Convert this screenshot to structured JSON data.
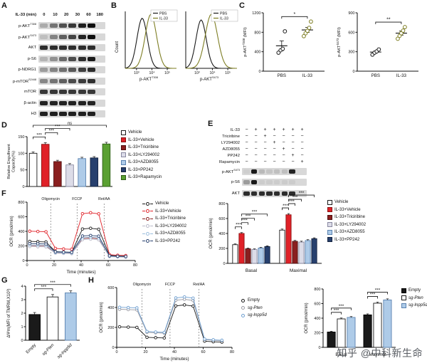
{
  "watermark": "知乎 @中科新生命",
  "panelA": {
    "letter": "A",
    "header_label": "IL-33 (min)",
    "lanes": [
      "0",
      "10",
      "20",
      "30",
      "60",
      "180"
    ],
    "rows": [
      {
        "base": "p-AKT",
        "sup": "T308",
        "bands": [
          0.22,
          0.5,
          0.68,
          0.8,
          0.92,
          1
        ]
      },
      {
        "base": "p-AKT",
        "sup": "S473",
        "bands": [
          0.12,
          0.42,
          0.6,
          0.74,
          0.9,
          1
        ]
      },
      {
        "base": "AKT",
        "bands": [
          0.85,
          0.85,
          0.85,
          0.85,
          0.85,
          0.85
        ]
      },
      {
        "base": "p-S6",
        "bands": [
          0.18,
          0.35,
          0.55,
          0.7,
          0.85,
          0.95
        ]
      },
      {
        "base": "p-NDRG1",
        "bands": [
          0.3,
          0.42,
          0.52,
          0.64,
          0.76,
          0.86
        ]
      },
      {
        "base": "p-mTOR",
        "sup": "S2448",
        "bands": [
          0.4,
          0.5,
          0.6,
          0.7,
          0.78,
          0.84
        ]
      },
      {
        "base": "mTOR",
        "bands": [
          0.8,
          0.8,
          0.8,
          0.8,
          0.8,
          0.8
        ]
      },
      {
        "base": "β-actin",
        "bands": [
          0.9,
          0.9,
          0.9,
          0.9,
          0.9,
          0.9
        ]
      },
      {
        "base": "H3",
        "bands": [
          0.92,
          0.92,
          0.92,
          0.92,
          0.92,
          0.92
        ]
      }
    ]
  },
  "panelB": {
    "letter": "B",
    "ylabel": "Count"
  },
  "panelC": {
    "letter": "C"
  },
  "panelD": {
    "letter": "D"
  },
  "panelE": {
    "letter": "E",
    "conditions": [
      {
        "label": "IL-33",
        "signs": [
          "−",
          "+",
          "+",
          "+",
          "+",
          "+",
          "+"
        ]
      },
      {
        "label": "Triciribine",
        "signs": [
          "−",
          "−",
          "+",
          "−",
          "−",
          "−",
          "−"
        ]
      },
      {
        "label": "LY294002",
        "signs": [
          "−",
          "−",
          "−",
          "+",
          "−",
          "−",
          "−"
        ]
      },
      {
        "label": "AZD8055",
        "signs": [
          "−",
          "−",
          "−",
          "−",
          "+",
          "−",
          "−"
        ]
      },
      {
        "label": "PP242",
        "signs": [
          "−",
          "−",
          "−",
          "−",
          "−",
          "+",
          "−"
        ]
      },
      {
        "label": "Rapamycin",
        "signs": [
          "−",
          "−",
          "−",
          "−",
          "−",
          "−",
          "+"
        ]
      }
    ],
    "blots": [
      {
        "base": "p-AKT",
        "sup": "S473",
        "bands": [
          0.05,
          0.95,
          0.15,
          0.1,
          0.12,
          0.12,
          0.9
        ]
      },
      {
        "base": "p-S6",
        "bands": [
          0.3,
          0.95,
          0.06,
          0.06,
          0.06,
          0.06,
          0.06
        ]
      },
      {
        "base": "AKT",
        "bands": [
          0.85,
          0.85,
          0.85,
          0.85,
          0.85,
          0.85,
          0.85
        ]
      }
    ]
  },
  "panelF": {
    "letter": "F"
  },
  "panelG": {
    "letter": "G"
  },
  "panelH": {
    "letter": "H"
  },
  "chart_data": [
    {
      "id": "B1",
      "panel": "B",
      "type": "histogram",
      "xlabel_pre": "p-AKT",
      "xlabel_sup": "T308",
      "ylabel": "Count",
      "xtick_labels": [
        "10³",
        "10⁴",
        "10⁵"
      ],
      "series": [
        {
          "name": "PBS",
          "color": "#1a1a1a",
          "center": 0.33,
          "width": 0.1,
          "height": 0.88
        },
        {
          "name": "IL-33",
          "color": "#7d7d22",
          "center": 0.5,
          "width": 0.11,
          "height": 0.95
        }
      ]
    },
    {
      "id": "B2",
      "panel": "B",
      "type": "histogram",
      "xlabel_pre": "p-AKT",
      "xlabel_sup": "S473",
      "ylabel": "Count",
      "xtick_labels": [
        "10³",
        "10⁴",
        "10⁵"
      ],
      "series": [
        {
          "name": "PBS",
          "color": "#1a1a1a",
          "center": 0.3,
          "width": 0.1,
          "height": 0.85
        },
        {
          "name": "IL-33",
          "color": "#7d7d22",
          "center": 0.5,
          "width": 0.12,
          "height": 0.95
        }
      ]
    },
    {
      "id": "C1",
      "panel": "C",
      "type": "scatter",
      "ylabel_pre": "p-AKT",
      "ylabel_sup": "T308",
      "ylabel_post": " (MFI)",
      "ylim": [
        0,
        1200
      ],
      "yticks": [
        0,
        400,
        800,
        1200
      ],
      "sig": "*",
      "groups": [
        {
          "name": "PBS",
          "color": "#1a1a1a",
          "points": [
            380,
            430,
            460,
            820
          ]
        },
        {
          "name": "IL-33",
          "color": "#7d7d22",
          "points": [
            720,
            780,
            830,
            890,
            1020
          ]
        }
      ]
    },
    {
      "id": "C2",
      "panel": "C",
      "type": "scatter",
      "ylabel_pre": "p-AKT",
      "ylabel_sup": "S473",
      "ylabel_post": " (MFI)",
      "ylim": [
        0,
        900
      ],
      "yticks": [
        0,
        300,
        600,
        900
      ],
      "sig": "**",
      "groups": [
        {
          "name": "PBS",
          "color": "#1a1a1a",
          "points": [
            255,
            285,
            305,
            335
          ]
        },
        {
          "name": "IL-33",
          "color": "#7d7d22",
          "points": [
            500,
            545,
            585,
            625,
            680
          ]
        }
      ]
    },
    {
      "id": "D",
      "panel": "D",
      "type": "bar",
      "ylabel_lines": [
        "Relative Engulfment",
        "Capacity(%)"
      ],
      "ylim": [
        0,
        150
      ],
      "yticks": [
        0,
        50,
        100,
        150
      ],
      "bars": [
        {
          "label": "Vehicle",
          "color": "#ffffff",
          "border": "#1a1a1a",
          "value": 100,
          "error": 4
        },
        {
          "label": "IL-33+Vehicle",
          "color": "#e02128",
          "border": "#8a1212",
          "value": 127,
          "error": 5
        },
        {
          "label": "IL-33+Triciribine",
          "color": "#8a1f1f",
          "border": "#4f0f0f",
          "value": 75,
          "error": 4
        },
        {
          "label": "IL-33+LY294002",
          "color": "#dcdce8",
          "border": "#8888a0",
          "value": 65,
          "error": 4
        },
        {
          "label": "IL-33+AZD8055",
          "color": "#aecbe8",
          "border": "#5a82b0",
          "value": 84,
          "error": 4
        },
        {
          "label": "IL-33+PP242",
          "color": "#27406e",
          "border": "#14233f",
          "value": 86,
          "error": 4
        },
        {
          "label": "IL-33+Rapamycin",
          "color": "#5aa032",
          "border": "#2f5c16",
          "value": 128,
          "error": 5
        }
      ],
      "sig": [
        {
          "i": 0,
          "j": 1,
          "label": "***"
        },
        {
          "i": 1,
          "j": 2,
          "label": "***"
        },
        {
          "i": 1,
          "j": 3,
          "label": "***"
        },
        {
          "i": 0,
          "j": 6,
          "label": "ns"
        }
      ]
    },
    {
      "id": "F_line",
      "panel": "F",
      "type": "line",
      "ylabel": "OCR (pmol/min)",
      "xlabel": "Time (minutes)",
      "ylim": [
        0,
        800
      ],
      "yticks": [
        0,
        200,
        400,
        600,
        800
      ],
      "xlim": [
        0,
        80
      ],
      "xticks": [
        0,
        20,
        40,
        60,
        80
      ],
      "point_error": 12,
      "injections": [
        {
          "x": 17.5,
          "label": "Oligomycin"
        },
        {
          "x": 37,
          "label": "FCCP"
        },
        {
          "x": 57,
          "label": "Ret/AA"
        }
      ],
      "x": [
        2,
        8,
        14,
        21,
        27,
        33,
        41,
        47,
        53,
        61,
        67,
        73
      ],
      "series": [
        {
          "name": "Vehicle",
          "color": "#1a1a1a",
          "values": [
            262,
            258,
            255,
            122,
            116,
            112,
            432,
            442,
            428,
            70,
            62,
            58
          ]
        },
        {
          "name": "IL-33+Vehicle",
          "color": "#e02128",
          "values": [
            402,
            398,
            394,
            166,
            158,
            154,
            642,
            655,
            640,
            80,
            72,
            68
          ]
        },
        {
          "name": "IL-33+Triciribine",
          "color": "#8a1f1f",
          "values": [
            206,
            203,
            200,
            108,
            104,
            101,
            302,
            309,
            300,
            58,
            52,
            49
          ]
        },
        {
          "name": "IL-33+LY294002",
          "color": "#b8b8c8",
          "values": [
            192,
            189,
            186,
            101,
            97,
            94,
            286,
            293,
            284,
            52,
            48,
            45
          ]
        },
        {
          "name": "IL-33+AZD8055",
          "color": "#9bbede",
          "values": [
            212,
            209,
            206,
            111,
            107,
            104,
            312,
            319,
            310,
            60,
            55,
            52
          ]
        },
        {
          "name": "IL-33+PP242",
          "color": "#27406e",
          "values": [
            232,
            229,
            226,
            119,
            115,
            112,
            336,
            343,
            334,
            64,
            58,
            55
          ]
        }
      ]
    },
    {
      "id": "F_bar",
      "panel": "F",
      "type": "bar",
      "ylabel": "OCR (pmol/min)",
      "ylim": [
        0,
        800
      ],
      "yticks": [
        0,
        200,
        400,
        600,
        800
      ],
      "groups": [
        "Basal",
        "Maximal"
      ],
      "series": [
        {
          "name": "Vehicle",
          "color": "#ffffff",
          "border": "#1a1a1a",
          "values": [
            250,
            445
          ],
          "errors": [
            10,
            14
          ]
        },
        {
          "name": "IL-33+Vehicle",
          "color": "#e02128",
          "border": "#8a1212",
          "values": [
            400,
            650
          ],
          "errors": [
            12,
            16
          ]
        },
        {
          "name": "IL-33+Triciribine",
          "color": "#8a1f1f",
          "border": "#4f0f0f",
          "values": [
            195,
            295
          ],
          "errors": [
            9,
            12
          ]
        },
        {
          "name": "IL-33+LY294002",
          "color": "#dcdce8",
          "border": "#8888a0",
          "values": [
            185,
            285
          ],
          "errors": [
            9,
            12
          ]
        },
        {
          "name": "IL-33+AZD8055",
          "color": "#aecbe8",
          "border": "#5a82b0",
          "values": [
            205,
            305
          ],
          "errors": [
            9,
            12
          ]
        },
        {
          "name": "IL-33+PP242",
          "color": "#27406e",
          "border": "#14233f",
          "values": [
            225,
            330
          ],
          "errors": [
            10,
            12
          ]
        }
      ],
      "sig": [
        [
          {
            "i": 0,
            "j": 1,
            "label": "***"
          },
          {
            "i": 1,
            "j": 2,
            "label": "***"
          },
          {
            "i": 1,
            "j": 3,
            "label": "***"
          },
          {
            "i": 1,
            "j": 5,
            "label": "***"
          }
        ],
        [
          {
            "i": 0,
            "j": 1,
            "label": "***"
          },
          {
            "i": 1,
            "j": 2,
            "label": "***"
          },
          {
            "i": 1,
            "j": 3,
            "label": "***"
          },
          {
            "i": 1,
            "j": 5,
            "label": "***"
          }
        ]
      ]
    },
    {
      "id": "G",
      "panel": "G",
      "type": "bar",
      "rot_labels": true,
      "ylabel": "ΔΨm(MFI of TMRM,X10³)",
      "ylim": [
        0,
        4
      ],
      "yticks": [
        0,
        1,
        2,
        3,
        4
      ],
      "bars": [
        {
          "label": "Empty",
          "italic": false,
          "color": "#1a1a1a",
          "border": "#000000",
          "value": 1.9,
          "error": 0.15
        },
        {
          "label": "sg-Pten",
          "italic": true,
          "color": "#ffffff",
          "border": "#1a1a1a",
          "value": 3.2,
          "error": 0.18
        },
        {
          "label": "sg-Inpp5d",
          "italic": true,
          "color": "#aecbe8",
          "border": "#5a82b0",
          "value": 3.5,
          "error": 0.15
        }
      ],
      "sig": [
        {
          "i": 0,
          "j": 1,
          "label": "***"
        },
        {
          "i": 0,
          "j": 2,
          "label": "***"
        }
      ]
    },
    {
      "id": "H_line",
      "panel": "H",
      "type": "line",
      "ylabel": "OCR (pmol/min)",
      "xlabel": "Time (minutes)",
      "ylim": [
        0,
        600
      ],
      "yticks": [
        0,
        200,
        400,
        600
      ],
      "xlim": [
        0,
        80
      ],
      "xticks": [
        0,
        20,
        40,
        60,
        80
      ],
      "point_error": 12,
      "injections": [
        {
          "x": 17.5,
          "label": "Oligomycin"
        },
        {
          "x": 37,
          "label": "FCCP"
        },
        {
          "x": 57,
          "label": "Ret/AA"
        }
      ],
      "x": [
        2,
        8,
        14,
        21,
        27,
        33,
        41,
        47,
        53,
        61,
        67,
        73
      ],
      "series": [
        {
          "name": "Empty",
          "italic": false,
          "color": "#1a1a1a",
          "values": [
            206,
            203,
            200,
            101,
            97,
            94,
            416,
            426,
            414,
            62,
            56,
            52
          ]
        },
        {
          "name": "sg-Pten",
          "italic": true,
          "color": "#9a9aa2",
          "values": [
            382,
            379,
            376,
            151,
            146,
            143,
            472,
            482,
            470,
            78,
            71,
            66
          ]
        },
        {
          "name": "sg-Inpp5d",
          "italic": true,
          "color": "#6f9fd0",
          "values": [
            402,
            399,
            396,
            159,
            154,
            150,
            496,
            506,
            494,
            83,
            76,
            71
          ]
        }
      ]
    },
    {
      "id": "H_bar",
      "panel": "H",
      "type": "bar",
      "ylabel": "OCR (pmol/min)",
      "ylim": [
        0,
        800
      ],
      "yticks": [
        0,
        200,
        400,
        600,
        800
      ],
      "groups": [
        "Basal",
        "Maximal"
      ],
      "series": [
        {
          "name": "Empty",
          "italic": false,
          "color": "#1a1a1a",
          "border": "#000000",
          "values": [
            210,
            445
          ],
          "errors": [
            10,
            14
          ]
        },
        {
          "name": "sg-Pten",
          "italic": true,
          "color": "#ffffff",
          "border": "#1a1a1a",
          "values": [
            390,
            605
          ],
          "errors": [
            12,
            15
          ]
        },
        {
          "name": "sg-Inpp5d",
          "italic": true,
          "color": "#aecbe8",
          "border": "#5a82b0",
          "values": [
            410,
            650
          ],
          "errors": [
            12,
            15
          ]
        }
      ],
      "sig": [
        [
          {
            "i": 0,
            "j": 1,
            "label": "***"
          },
          {
            "i": 0,
            "j": 2,
            "label": "***"
          }
        ],
        [
          {
            "i": 0,
            "j": 1,
            "label": "***"
          },
          {
            "i": 0,
            "j": 2,
            "label": "***"
          }
        ]
      ]
    }
  ]
}
